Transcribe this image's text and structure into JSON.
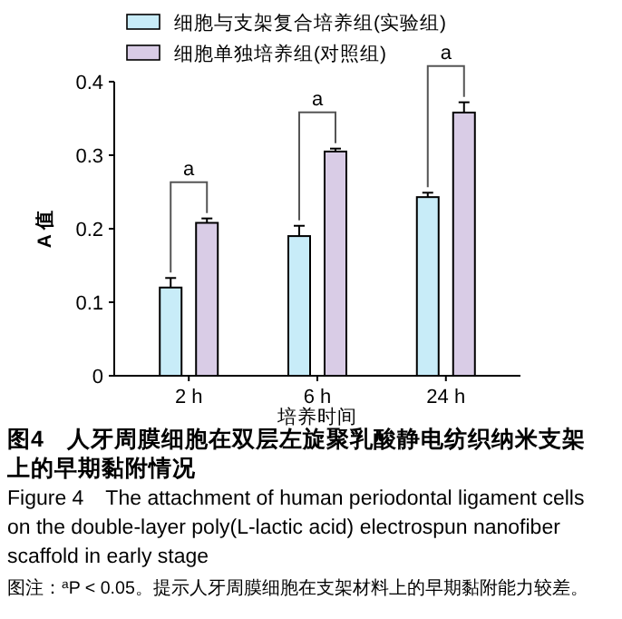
{
  "chart_data": {
    "type": "bar",
    "title": "图4　人牙周膜细胞在双层左旋聚乳酸静电纺织纳米支架上的早期黏附情况",
    "subtitle": "Figure 4　The attachment of human periodontal ligament cells on the double-layer poly(L-lactic acid) electrospun nanofiber scaffold in early stage",
    "xlabel": "培养时间",
    "ylabel": "A 值",
    "categories": [
      "2 h",
      "6 h",
      "24 h"
    ],
    "series": [
      {
        "name": "细胞与支架复合培养组(实验组)",
        "color": "#c8ecf8",
        "values": [
          0.12,
          0.19,
          0.243
        ],
        "errors": [
          0.013,
          0.014,
          0.006
        ]
      },
      {
        "name": "细胞单独培养组(对照组)",
        "color": "#d9cce6",
        "values": [
          0.208,
          0.305,
          0.358
        ],
        "errors": [
          0.006,
          0.004,
          0.014
        ]
      }
    ],
    "ylim": [
      0,
      0.4
    ],
    "yticks": [
      {
        "value": 0,
        "label": "0"
      },
      0.1,
      0.2,
      0.3,
      0.4
    ],
    "grid": false,
    "legend": "top",
    "annotations": [
      "a",
      "a",
      "a",
      "图注：$^{a}$P < 0.05。提示人牙周膜细胞在支架材料上的早期黏附能力较差。"
    ]
  }
}
